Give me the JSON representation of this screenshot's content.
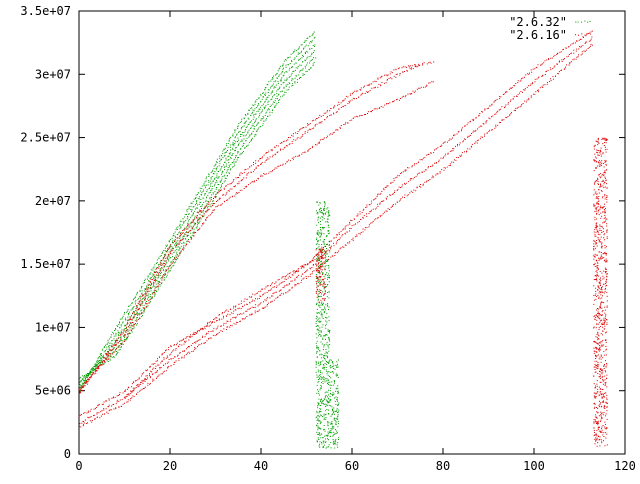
{
  "chart_data": {
    "type": "scatter",
    "xlim": [
      0,
      120
    ],
    "ylim": [
      0,
      35000000
    ],
    "x_ticks": [
      {
        "value": 0,
        "label": "0"
      },
      {
        "value": 20,
        "label": "20"
      },
      {
        "value": 40,
        "label": "40"
      },
      {
        "value": 60,
        "label": "60"
      },
      {
        "value": 80,
        "label": "80"
      },
      {
        "value": 100,
        "label": "100"
      },
      {
        "value": 120,
        "label": "120"
      }
    ],
    "y_ticks": [
      {
        "value": 0,
        "label": "0"
      },
      {
        "value": 5000000,
        "label": "5e+06"
      },
      {
        "value": 10000000,
        "label": "1e+07"
      },
      {
        "value": 15000000,
        "label": "1.5e+07"
      },
      {
        "value": 20000000,
        "label": "2e+07"
      },
      {
        "value": 25000000,
        "label": "2.5e+07"
      },
      {
        "value": 30000000,
        "label": "3e+07"
      },
      {
        "value": 35000000,
        "label": "3.5e+07"
      }
    ],
    "grid": false,
    "legend_position": "top-right",
    "series": [
      {
        "name": "\"2.6.32\"",
        "color": "#00a000",
        "marker": "dot",
        "traces": [
          {
            "points": [
              [
                0,
                5000000
              ],
              [
                8,
                10000000
              ],
              [
                15,
                14000000
              ],
              [
                25,
                20000000
              ],
              [
                35,
                26000000
              ],
              [
                45,
                31000000
              ],
              [
                52,
                33500000
              ]
            ]
          },
          {
            "points": [
              [
                0,
                5200000
              ],
              [
                8,
                9500000
              ],
              [
                15,
                13500000
              ],
              [
                25,
                19500000
              ],
              [
                35,
                25500000
              ],
              [
                45,
                30500000
              ],
              [
                52,
                33000000
              ]
            ]
          },
          {
            "points": [
              [
                0,
                5400000
              ],
              [
                8,
                9000000
              ],
              [
                15,
                13000000
              ],
              [
                25,
                19000000
              ],
              [
                35,
                25000000
              ],
              [
                45,
                30000000
              ],
              [
                52,
                32500000
              ]
            ]
          },
          {
            "points": [
              [
                0,
                5600000
              ],
              [
                8,
                8600000
              ],
              [
                15,
                12600000
              ],
              [
                25,
                18500000
              ],
              [
                35,
                24500000
              ],
              [
                45,
                29500000
              ],
              [
                52,
                32000000
              ]
            ]
          },
          {
            "points": [
              [
                0,
                5800000
              ],
              [
                8,
                8200000
              ],
              [
                15,
                12200000
              ],
              [
                25,
                18000000
              ],
              [
                35,
                24000000
              ],
              [
                45,
                29000000
              ],
              [
                52,
                31500000
              ]
            ]
          },
          {
            "points": [
              [
                0,
                6000000
              ],
              [
                8,
                7800000
              ],
              [
                15,
                11800000
              ],
              [
                25,
                17500000
              ],
              [
                35,
                23500000
              ],
              [
                45,
                28500000
              ],
              [
                52,
                31000000
              ]
            ]
          }
        ],
        "bands": [
          {
            "x": [
              52,
              55
            ],
            "y": [
              500000,
              20000000
            ]
          },
          {
            "x": [
              55,
              57
            ],
            "y": [
              500000,
              7500000
            ]
          }
        ]
      },
      {
        "name": "\"2.6.16\"",
        "color": "#dd0000",
        "marker": "dot",
        "traces": [
          {
            "points": [
              [
                0,
                4800000
              ],
              [
                10,
                10000000
              ],
              [
                20,
                16500000
              ],
              [
                30,
                20500000
              ],
              [
                40,
                23500000
              ],
              [
                50,
                26000000
              ],
              [
                60,
                28500000
              ],
              [
                70,
                30500000
              ],
              [
                78,
                31000000
              ]
            ]
          },
          {
            "points": [
              [
                0,
                5000000
              ],
              [
                10,
                9500000
              ],
              [
                20,
                16000000
              ],
              [
                30,
                20000000
              ],
              [
                40,
                23000000
              ],
              [
                50,
                25500000
              ],
              [
                60,
                28000000
              ],
              [
                70,
                30000000
              ],
              [
                75,
                30800000
              ]
            ]
          },
          {
            "points": [
              [
                0,
                5200000
              ],
              [
                10,
                9000000
              ],
              [
                20,
                15000000
              ],
              [
                30,
                19500000
              ],
              [
                40,
                22000000
              ],
              [
                50,
                24000000
              ],
              [
                60,
                26500000
              ],
              [
                70,
                28000000
              ],
              [
                78,
                29500000
              ]
            ]
          },
          {
            "points": [
              [
                0,
                3000000
              ],
              [
                10,
                5000000
              ],
              [
                20,
                8500000
              ],
              [
                30,
                10500000
              ],
              [
                40,
                12500000
              ],
              [
                50,
                15000000
              ],
              [
                60,
                18500000
              ],
              [
                70,
                22000000
              ],
              [
                80,
                24500000
              ],
              [
                90,
                27500000
              ],
              [
                100,
                30500000
              ],
              [
                113,
                33500000
              ]
            ]
          },
          {
            "points": [
              [
                0,
                2500000
              ],
              [
                10,
                4500000
              ],
              [
                20,
                7500000
              ],
              [
                30,
                10000000
              ],
              [
                40,
                12000000
              ],
              [
                50,
                14500000
              ],
              [
                60,
                18000000
              ],
              [
                70,
                21000000
              ],
              [
                80,
                23500000
              ],
              [
                90,
                26500000
              ],
              [
                100,
                29500000
              ],
              [
                113,
                33000000
              ]
            ]
          },
          {
            "points": [
              [
                0,
                2200000
              ],
              [
                10,
                4000000
              ],
              [
                20,
                7000000
              ],
              [
                30,
                9500000
              ],
              [
                40,
                11500000
              ],
              [
                50,
                14000000
              ],
              [
                60,
                17000000
              ],
              [
                70,
                20000000
              ],
              [
                80,
                22500000
              ],
              [
                90,
                25500000
              ],
              [
                100,
                28500000
              ],
              [
                113,
                32500000
              ]
            ]
          },
          {
            "points": [
              [
                10,
                4500000
              ],
              [
                20,
                8000000
              ],
              [
                30,
                10800000
              ],
              [
                40,
                13000000
              ],
              [
                52,
                15500000
              ]
            ]
          }
        ],
        "bands": [
          {
            "x": [
              113,
              116
            ],
            "y": [
              500000,
              25000000
            ]
          },
          {
            "x": [
              52,
              54
            ],
            "y": [
              12000000,
              16500000
            ]
          }
        ]
      }
    ]
  }
}
